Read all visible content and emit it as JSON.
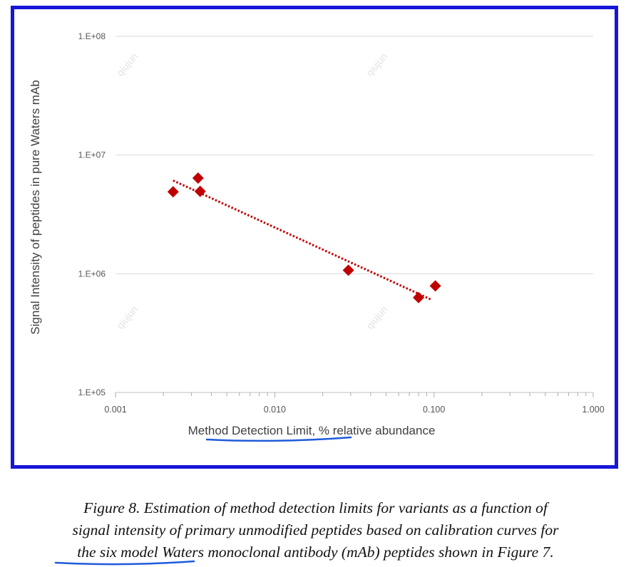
{
  "chart_data": {
    "type": "scatter",
    "title": "",
    "xlabel": "Method Detection Limit, % relative abundance",
    "ylabel": "Signal Intensity of peptides in pure Waters mAb",
    "x_scale": "log",
    "y_scale": "log",
    "xlim": [
      0.001,
      1.0
    ],
    "ylim": [
      100000,
      100000000
    ],
    "x_ticks": [
      "0.001",
      "0.010",
      "0.100",
      "1.000"
    ],
    "y_ticks": [
      "1.E+05",
      "1.E+06",
      "1.E+07",
      "1.E+08"
    ],
    "grid": "horizontal major",
    "legend": "none",
    "series": [
      {
        "marker": "diamond",
        "color": "#c00000",
        "x": [
          0.0023,
          0.0033,
          0.0034,
          0.029,
          0.08,
          0.102
        ],
        "y": [
          4900000,
          6400000,
          4950000,
          1070000,
          630000,
          790000
        ]
      }
    ],
    "trendline": {
      "style": "dotted",
      "color": "#c00000",
      "x": [
        0.0023,
        0.095
      ],
      "y": [
        6100000,
        610000
      ]
    }
  },
  "caption": {
    "lines": [
      "Figure 8.  Estimation of method detection limits for variants as a function of",
      "signal intensity of primary unmodified peptides based on calibration curves for",
      "the six model Waters monoclonal antibody (mAb) peptides shown in Figure 7."
    ]
  },
  "watermark": "qiujun",
  "colors": {
    "frame": "#1616d8",
    "marker": "#c00000",
    "underline": "#1e5bd8",
    "grid": "#d9d9d9"
  }
}
